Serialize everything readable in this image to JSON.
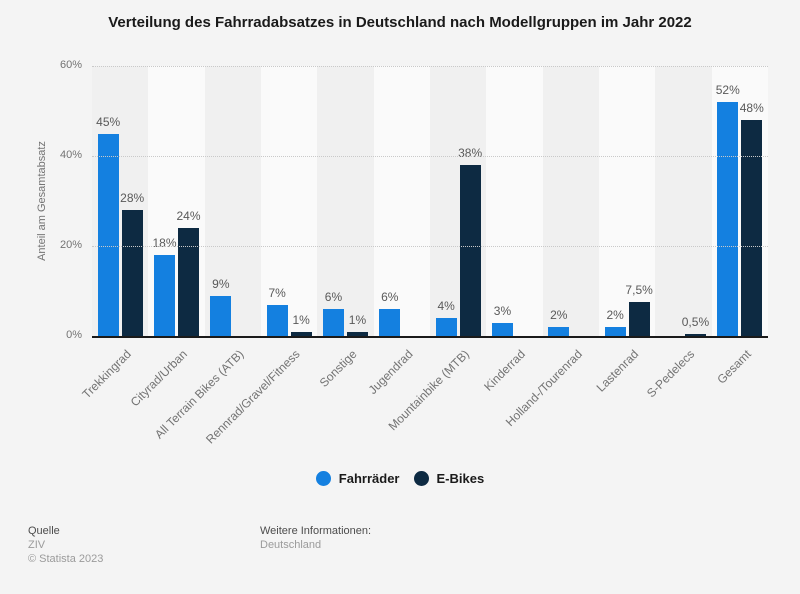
{
  "chart_data": {
    "type": "bar",
    "title": "Verteilung des Fahrradabsatzes in Deutschland nach Modellgruppen im Jahr 2022",
    "ylabel": "Anteil am Gesamtabsatz",
    "xlabel": "",
    "ylim": [
      0,
      60
    ],
    "yticks": [
      {
        "value": 0,
        "label": "0%"
      },
      {
        "value": 20,
        "label": "20%"
      },
      {
        "value": 40,
        "label": "40%"
      },
      {
        "value": 60,
        "label": "60%"
      }
    ],
    "grid": "horizontal dotted lines at 20/40/60, solid dark baseline at 0",
    "legend_position": "bottom-center",
    "categories": [
      "Trekkingrad",
      "Cityrad/Urban",
      "All Terrain Bikes (ATB)",
      "Rennrad/Gravel/Fitness",
      "Sonstige",
      "Jugendrad",
      "Mountainbike (MTB)",
      "Kinderrad",
      "Holland-/Tourenrad",
      "Lastenrad",
      "S-Pedelecs",
      "Gesamt"
    ],
    "series": [
      {
        "name": "Fahrräder",
        "color": "#1480e0",
        "values": [
          45,
          18,
          9,
          7,
          6,
          6,
          4,
          3,
          2,
          2,
          null,
          52
        ],
        "labels": [
          "45%",
          "18%",
          "9%",
          "7%",
          "6%",
          "6%",
          "4%",
          "3%",
          "2%",
          "2%",
          null,
          "52%"
        ]
      },
      {
        "name": "E-Bikes",
        "color": "#0d2a42",
        "values": [
          28,
          24,
          null,
          1,
          1,
          null,
          38,
          null,
          null,
          7.5,
          0.5,
          48
        ],
        "labels": [
          "28%",
          "24%",
          null,
          "1%",
          "1%",
          null,
          "38%",
          null,
          null,
          "7,5%",
          "0,5%",
          "48%"
        ]
      }
    ]
  },
  "footer": {
    "source_label": "Quelle",
    "source_value": "ZIV",
    "copyright": "© Statista 2023",
    "info_label": "Weitere Informationen:",
    "info_value": "Deutschland"
  },
  "colors": {
    "page_bg": "#f4f4f4",
    "band_odd": "#f0f0f0",
    "band_even": "#fafafa",
    "axis_line": "#1a1a1a",
    "grid_line": "#c9c9c9",
    "value_label": "#595959",
    "tick_label": "#737373",
    "title_text": "#1a1a1a"
  }
}
